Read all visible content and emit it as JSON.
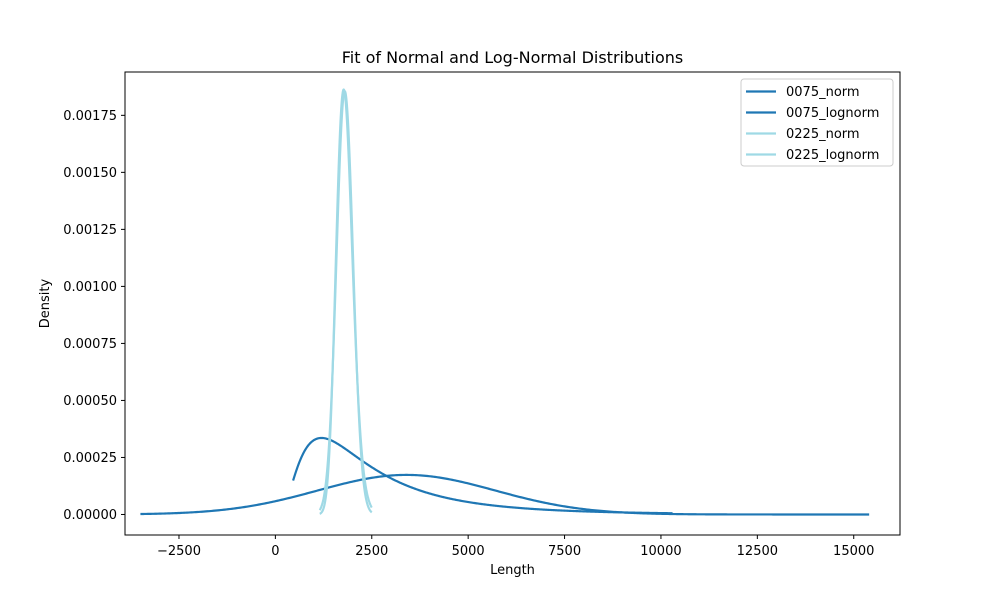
{
  "chart_data": {
    "type": "line",
    "title": "Fit of Normal and Log-Normal Distributions",
    "xlabel": "Length",
    "ylabel": "Density",
    "xlim": [
      -3900,
      16200
    ],
    "ylim": [
      -9e-05,
      0.00194
    ],
    "x_ticks": [
      -2500,
      0,
      2500,
      5000,
      7500,
      10000,
      12500,
      15000
    ],
    "x_tick_labels": [
      "−2500",
      "0",
      "2500",
      "5000",
      "7500",
      "10000",
      "12500",
      "15000"
    ],
    "y_ticks": [
      0,
      0.00025,
      0.0005,
      0.00075,
      0.001,
      0.00125,
      0.0015,
      0.00175
    ],
    "y_tick_labels": [
      "0.00000",
      "0.00025",
      "0.00050",
      "0.00075",
      "0.00100",
      "0.00125",
      "0.00150",
      "0.00175"
    ],
    "grid": false,
    "legend_position": "top-right",
    "series": [
      {
        "name": "0075_norm",
        "color": "#1f77b4",
        "model": "normal",
        "mu": 3400,
        "sigma": 2300,
        "x_range": [
          -3500,
          15400
        ]
      },
      {
        "name": "0075_lognorm",
        "color": "#1f77b4",
        "model": "lognormal",
        "mu_log": 7.65,
        "sigma_log": 0.75,
        "x_range": [
          460,
          10300
        ]
      },
      {
        "name": "0225_norm",
        "color": "#9fd9e5",
        "model": "normal",
        "mu": 1800,
        "sigma": 215,
        "x_range": [
          1150,
          2500
        ]
      },
      {
        "name": "0225_lognorm",
        "color": "#9fd9e5",
        "model": "lognormal",
        "mu_log": 7.494,
        "sigma_log": 0.12,
        "x_range": [
          1150,
          2500
        ]
      }
    ]
  }
}
